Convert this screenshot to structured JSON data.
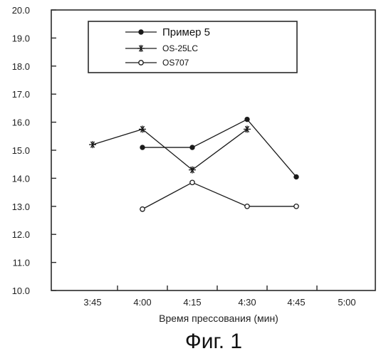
{
  "chart_data": {
    "type": "line",
    "categories": [
      "3:45",
      "4:00",
      "4:15",
      "4:30",
      "4:45",
      "5:00"
    ],
    "xlabel": "Время прессования (мин)",
    "ylabel": "",
    "ylim": [
      10.0,
      20.0
    ],
    "yticks": [
      "10.0",
      "11.0",
      "12.0",
      "13.0",
      "14.0",
      "15.0",
      "16.0",
      "17.0",
      "18.0",
      "19.0",
      "20.0"
    ],
    "grid": false,
    "legend_position": "top",
    "series": [
      {
        "name": "Пример 5",
        "marker": "filled-circle",
        "points": [
          {
            "x": "4:00",
            "y": 15.1
          },
          {
            "x": "4:15",
            "y": 15.1
          },
          {
            "x": "4:30",
            "y": 16.1
          },
          {
            "x": "4:45",
            "y": 14.05
          }
        ]
      },
      {
        "name": "OS-25LC",
        "marker": "asterisk",
        "points": [
          {
            "x": "3:45",
            "y": 15.2
          },
          {
            "x": "4:00",
            "y": 15.75
          },
          {
            "x": "4:15",
            "y": 14.3
          },
          {
            "x": "4:30",
            "y": 15.75
          }
        ]
      },
      {
        "name": "OS707",
        "marker": "open-circle",
        "points": [
          {
            "x": "4:00",
            "y": 12.9
          },
          {
            "x": "4:15",
            "y": 13.85
          },
          {
            "x": "4:30",
            "y": 13.0
          },
          {
            "x": "4:45",
            "y": 13.0
          }
        ]
      }
    ]
  },
  "caption": "Фиг. 1",
  "colors": {
    "ink": "#1a1a1a",
    "frame": "#2a2a2a"
  }
}
